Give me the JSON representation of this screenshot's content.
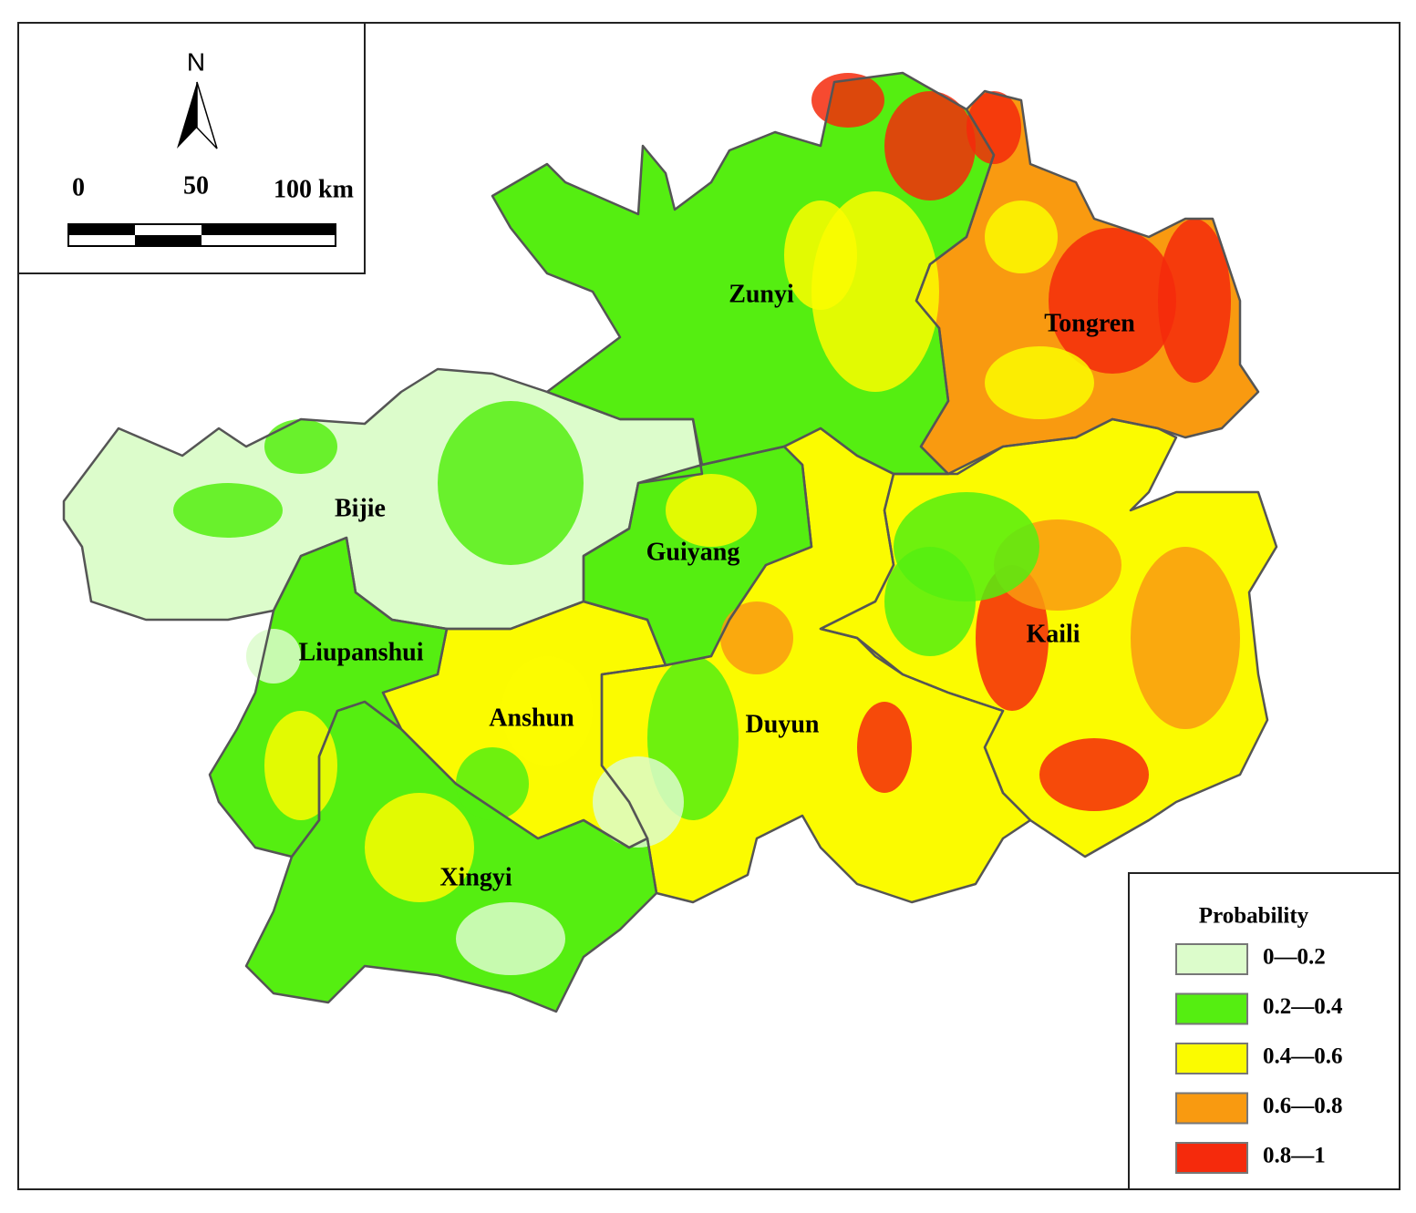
{
  "north": "N",
  "scale_bar": {
    "labels": [
      "0",
      "50",
      "100 km"
    ]
  },
  "regions": [
    {
      "label": "Bijie"
    },
    {
      "label": "Zunyi"
    },
    {
      "label": "Tongren"
    },
    {
      "label": "Guiyang"
    },
    {
      "label": "Kaili"
    },
    {
      "label": "Duyun"
    },
    {
      "label": "Anshun"
    },
    {
      "label": "Liupanshui"
    },
    {
      "label": "Xingyi"
    }
  ],
  "legend": {
    "title": "Probability",
    "items": [
      {
        "label": "0—0.2",
        "color": "#dcfccb"
      },
      {
        "label": "0.2—0.4",
        "color": "#55ee11"
      },
      {
        "label": "0.4—0.6",
        "color": "#fbfb00"
      },
      {
        "label": "0.6—0.8",
        "color": "#f99a10"
      },
      {
        "label": "0.8—1",
        "color": "#f52a0c"
      }
    ]
  }
}
